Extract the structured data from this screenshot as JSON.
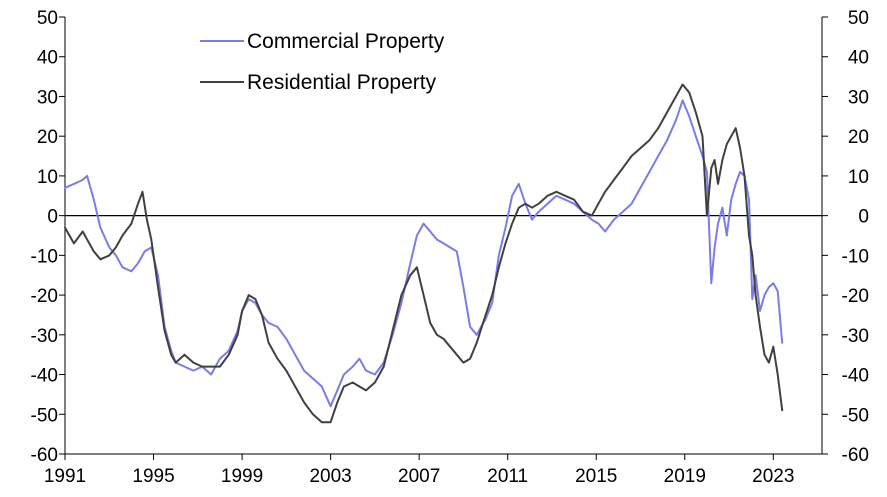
{
  "chart_data": {
    "type": "line",
    "title": "",
    "xlabel": "",
    "ylabel": "",
    "xlim": [
      1991,
      2025.2
    ],
    "ylim": [
      -60,
      50
    ],
    "grid": false,
    "x_ticks": [
      "1991",
      "1995",
      "1999",
      "2003",
      "2007",
      "2011",
      "2015",
      "2019",
      "2023"
    ],
    "x_tick_values": [
      1991,
      1995,
      1999,
      2003,
      2007,
      2011,
      2015,
      2019,
      2023
    ],
    "y_ticks": [
      "50",
      "40",
      "30",
      "20",
      "10",
      "0",
      "-10",
      "-20",
      "-30",
      "-40",
      "-50",
      "-60"
    ],
    "y_tick_values": [
      50,
      40,
      30,
      20,
      10,
      0,
      -10,
      -20,
      -30,
      -40,
      -50,
      -60
    ],
    "legend_position": "top-left",
    "series": [
      {
        "name": "Commercial Property",
        "color": "#7b7bea",
        "x": [
          1991.0,
          1991.4,
          1991.8,
          1992.0,
          1992.3,
          1992.6,
          1993.0,
          1993.3,
          1993.6,
          1994.0,
          1994.3,
          1994.6,
          1994.9,
          1995.2,
          1995.5,
          1995.8,
          1996.0,
          1996.4,
          1996.8,
          1997.2,
          1997.6,
          1998.0,
          1998.4,
          1998.8,
          1999.0,
          1999.3,
          1999.6,
          1999.9,
          2000.2,
          2000.6,
          2001.0,
          2001.4,
          2001.8,
          2002.2,
          2002.6,
          2003.0,
          2003.3,
          2003.6,
          2004.0,
          2004.3,
          2004.6,
          2005.0,
          2005.4,
          2005.8,
          2006.2,
          2006.6,
          2006.9,
          2007.2,
          2007.5,
          2007.8,
          2008.1,
          2008.4,
          2008.7,
          2009.0,
          2009.3,
          2009.6,
          2010.0,
          2010.3,
          2010.6,
          2010.9,
          2011.2,
          2011.5,
          2011.8,
          2012.1,
          2012.4,
          2012.8,
          2013.2,
          2013.6,
          2014.0,
          2014.4,
          2014.8,
          2015.1,
          2015.4,
          2015.8,
          2016.2,
          2016.6,
          2017.0,
          2017.4,
          2017.8,
          2018.2,
          2018.6,
          2018.9,
          2019.2,
          2019.5,
          2019.8,
          2020.0,
          2020.2,
          2020.35,
          2020.5,
          2020.7,
          2020.9,
          2021.1,
          2021.3,
          2021.5,
          2021.7,
          2021.9,
          2022.05,
          2022.2,
          2022.4,
          2022.6,
          2022.8,
          2023.0,
          2023.2,
          2023.4
        ],
        "values": [
          7,
          8,
          9,
          10,
          4,
          -3,
          -8,
          -10,
          -13,
          -14,
          -12,
          -9,
          -8,
          -15,
          -28,
          -34,
          -37,
          -38,
          -39,
          -38,
          -40,
          -36,
          -34,
          -29,
          -24,
          -21,
          -22,
          -25,
          -27,
          -28,
          -31,
          -35,
          -39,
          -41,
          -43,
          -48,
          -44,
          -40,
          -38,
          -36,
          -39,
          -40,
          -37,
          -30,
          -22,
          -12,
          -5,
          -2,
          -4,
          -6,
          -7,
          -8,
          -9,
          -18,
          -28,
          -30,
          -26,
          -22,
          -10,
          -3,
          5,
          8,
          3,
          -1,
          1,
          3,
          5,
          4,
          3,
          1,
          -1,
          -2,
          -4,
          -1,
          1,
          3,
          7,
          11,
          15,
          19,
          24,
          29,
          25,
          20,
          15,
          11,
          -17,
          -8,
          -2,
          2,
          -5,
          4,
          8,
          11,
          10,
          4,
          -21,
          -15,
          -24,
          -20,
          -18,
          -17,
          -19,
          -32
        ]
      },
      {
        "name": "Residential Property",
        "color": "#404040",
        "x": [
          1991.0,
          1991.4,
          1991.8,
          1992.0,
          1992.3,
          1992.6,
          1993.0,
          1993.3,
          1993.6,
          1994.0,
          1994.3,
          1994.5,
          1994.7,
          1994.9,
          1995.2,
          1995.5,
          1995.8,
          1996.0,
          1996.4,
          1996.8,
          1997.2,
          1997.6,
          1998.0,
          1998.4,
          1998.8,
          1999.0,
          1999.3,
          1999.6,
          1999.9,
          2000.2,
          2000.6,
          2001.0,
          2001.4,
          2001.8,
          2002.2,
          2002.6,
          2003.0,
          2003.3,
          2003.6,
          2004.0,
          2004.3,
          2004.6,
          2005.0,
          2005.4,
          2005.8,
          2006.2,
          2006.6,
          2006.9,
          2007.2,
          2007.5,
          2007.8,
          2008.1,
          2008.4,
          2008.7,
          2009.0,
          2009.3,
          2009.6,
          2010.0,
          2010.3,
          2010.6,
          2010.9,
          2011.2,
          2011.5,
          2011.8,
          2012.1,
          2012.4,
          2012.8,
          2013.2,
          2013.6,
          2014.0,
          2014.4,
          2014.8,
          2015.1,
          2015.4,
          2015.8,
          2016.2,
          2016.6,
          2017.0,
          2017.4,
          2017.8,
          2018.2,
          2018.6,
          2018.9,
          2019.2,
          2019.5,
          2019.8,
          2020.0,
          2020.2,
          2020.35,
          2020.5,
          2020.7,
          2020.9,
          2021.1,
          2021.3,
          2021.5,
          2021.7,
          2021.9,
          2022.05,
          2022.2,
          2022.4,
          2022.6,
          2022.8,
          2023.0,
          2023.2,
          2023.4
        ],
        "values": [
          -3,
          -7,
          -4,
          -6,
          -9,
          -11,
          -10,
          -8,
          -5,
          -2,
          3,
          6,
          -1,
          -6,
          -18,
          -29,
          -35,
          -37,
          -35,
          -37,
          -38,
          -38,
          -38,
          -35,
          -30,
          -24,
          -20,
          -21,
          -25,
          -32,
          -36,
          -39,
          -43,
          -47,
          -50,
          -52,
          -52,
          -47,
          -43,
          -42,
          -43,
          -44,
          -42,
          -38,
          -29,
          -20,
          -15,
          -13,
          -20,
          -27,
          -30,
          -31,
          -33,
          -35,
          -37,
          -36,
          -32,
          -25,
          -20,
          -13,
          -7,
          -2,
          2,
          3,
          2,
          3,
          5,
          6,
          5,
          4,
          1,
          0,
          3,
          6,
          9,
          12,
          15,
          17,
          19,
          22,
          26,
          30,
          33,
          31,
          26,
          20,
          0,
          12,
          14,
          8,
          14,
          18,
          20,
          22,
          17,
          10,
          -5,
          -10,
          -20,
          -28,
          -35,
          -37,
          -33,
          -40,
          -49
        ]
      }
    ]
  }
}
